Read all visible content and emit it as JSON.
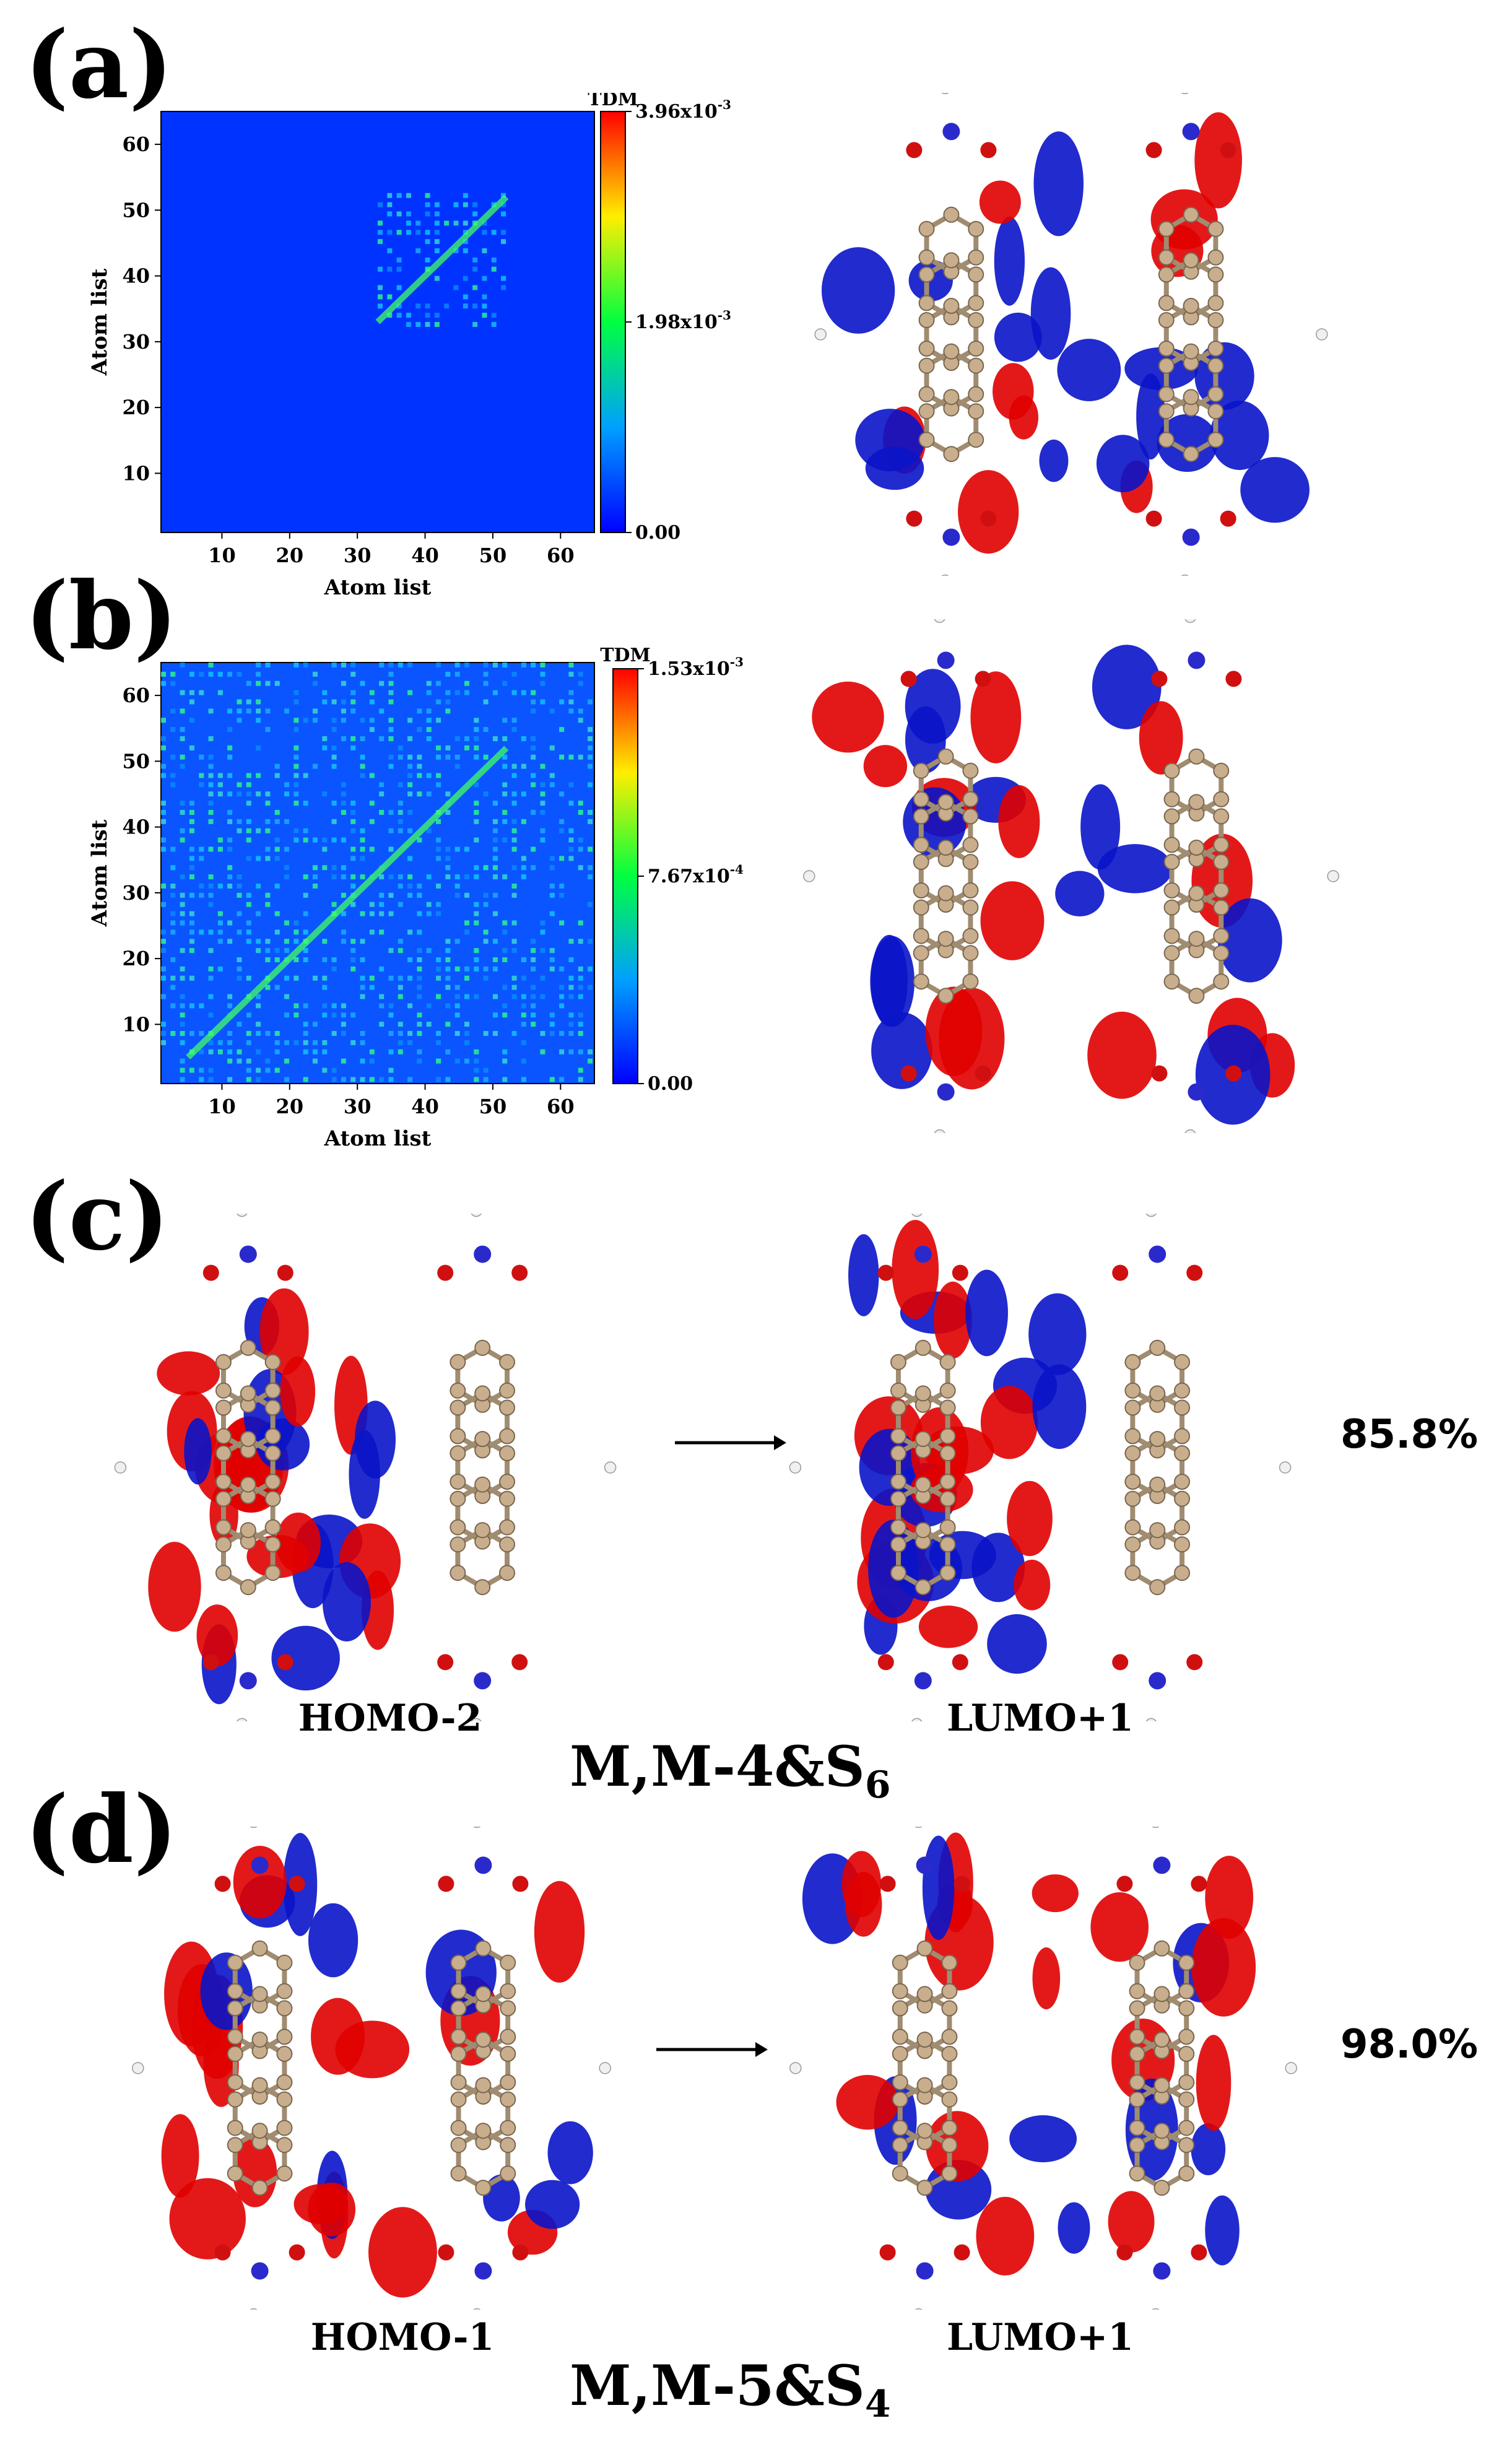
{
  "panels": {
    "a": {
      "label": "(a)"
    },
    "b": {
      "label": "(b)"
    },
    "c": {
      "label": "(c)"
    },
    "d": {
      "label": "(d)"
    }
  },
  "heatmap_a": {
    "ylabel": "Atom list",
    "xlabel": "Atom list",
    "xticks": [
      "10",
      "20",
      "30",
      "40",
      "50",
      "60"
    ],
    "yticks": [
      "10",
      "20",
      "30",
      "40",
      "50",
      "60"
    ],
    "colorbar_title": "TDM",
    "colorbar_ticks": [
      "3.96x10",
      "1.98x10",
      "0.00"
    ],
    "colorbar_exp": [
      "-3",
      "-3",
      ""
    ]
  },
  "heatmap_b": {
    "ylabel": "Atom list",
    "xlabel": "Atom list",
    "xticks": [
      "10",
      "20",
      "30",
      "40",
      "50",
      "60"
    ],
    "yticks": [
      "10",
      "20",
      "30",
      "40",
      "50",
      "60"
    ],
    "colorbar_title": "TDM",
    "colorbar_ticks": [
      "1.53x10",
      "7.67x10",
      "0.00"
    ],
    "colorbar_exp": [
      "-3",
      "-4",
      ""
    ]
  },
  "panel_c": {
    "from_label": "HOMO-2",
    "to_label": "LUMO+1",
    "percent": "85.8%",
    "compound": "M,M-4&S",
    "compound_sub": "6"
  },
  "panel_d": {
    "from_label": "HOMO-1",
    "to_label": "LUMO+1",
    "percent": "98.0%",
    "compound": "M,M-5&S",
    "compound_sub": "4"
  },
  "colors": {
    "heat_low": "#0033ff",
    "heat_mid": "#00ff66",
    "heat_high": "#ff0000",
    "lobe_red": "#e00000",
    "lobe_blue": "#0a14c8",
    "carbon": "#c8ae8c",
    "nitrogen": "#2a2acc",
    "oxygen": "#d01010",
    "hydrogen": "#f0f0f0"
  },
  "chart_data": [
    {
      "type": "heatmap",
      "panel": "(a)",
      "xlabel": "Atom list",
      "ylabel": "Atom list",
      "xlim": [
        1,
        65
      ],
      "ylim": [
        1,
        65
      ],
      "colorbar_title": "TDM",
      "colorbar_range": [
        0.0,
        0.00396
      ],
      "hot_region": {
        "x": [
          33,
          52
        ],
        "y": [
          32,
          52
        ]
      },
      "peak_diagonal": [
        33,
        52
      ]
    },
    {
      "type": "heatmap",
      "panel": "(b)",
      "xlabel": "Atom list",
      "ylabel": "Atom list",
      "xlim": [
        1,
        65
      ],
      "ylim": [
        1,
        65
      ],
      "colorbar_title": "TDM",
      "colorbar_range": [
        0.0,
        0.00153
      ],
      "hot_region": {
        "x": [
          1,
          65
        ],
        "y": [
          1,
          65
        ]
      },
      "peak_diagonal": [
        5,
        52
      ]
    }
  ]
}
